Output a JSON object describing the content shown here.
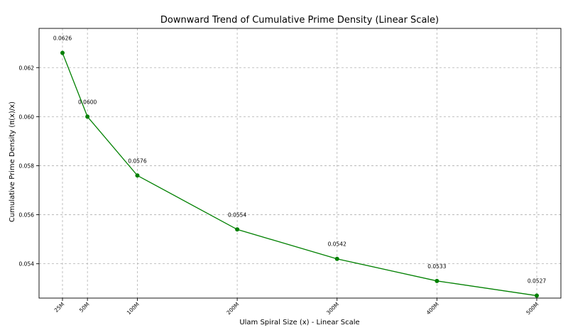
{
  "chart_data": {
    "type": "line",
    "title": "Downward Trend of Cumulative Prime Density (Linear Scale)",
    "xlabel": "Ulam Spiral Size (x) - Linear Scale",
    "ylabel": "Cumulative Prime Density (π(x)/x)",
    "x": [
      25,
      50,
      100,
      200,
      300,
      400,
      500
    ],
    "x_tick_labels": [
      "25M",
      "50M",
      "100M",
      "200M",
      "300M",
      "400M",
      "500M"
    ],
    "y_ticks": [
      0.054,
      0.056,
      0.058,
      0.06,
      0.062
    ],
    "y_tick_labels": [
      "0.054",
      "0.056",
      "0.058",
      "0.060",
      "0.062"
    ],
    "series": [
      {
        "values": [
          0.0626,
          0.06,
          0.0576,
          0.0554,
          0.0542,
          0.0533,
          0.0527
        ],
        "labels": [
          "0.0626",
          "0.0600",
          "0.0576",
          "0.0554",
          "0.0542",
          "0.0533",
          "0.0527"
        ],
        "color": "#008000"
      }
    ],
    "xlim": [
      25,
      500
    ],
    "ylim": [
      0.0526,
      0.0636
    ],
    "grid": true,
    "x_tick_rotation": 45,
    "legend": "none"
  }
}
